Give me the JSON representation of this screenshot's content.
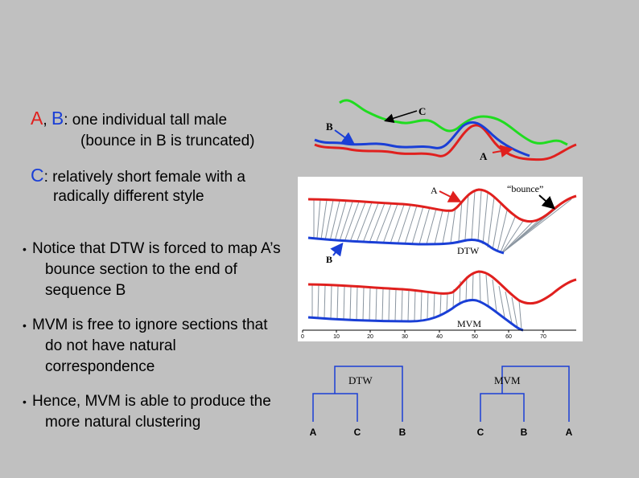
{
  "left_text": {
    "line1": {
      "a": "A",
      "comma": ",",
      "b": "B",
      "rest": ": one individual tall male"
    },
    "line2": "(bounce in B is truncated)",
    "line3": {
      "c": "C",
      "rest": ":  relatively short female with a"
    },
    "line4": "radically different style"
  },
  "bullets": [
    {
      "bullet": "•",
      "text": "Notice that DTW is forced to map A’s bounce section to the end of sequence B"
    },
    {
      "bullet": "•",
      "text": "MVM is free to ignore sections that do not have natural correspondence"
    },
    {
      "bullet": "•",
      "text": "Hence, MVM is able to produce the more natural clustering"
    }
  ],
  "top_plot": {
    "label_c": "C",
    "label_b": "B",
    "label_a": "A"
  },
  "mid_plot": {
    "label_a": "A",
    "label_bounce": "“bounce”",
    "label_b": "B",
    "label_dtw": "DTW",
    "label_mvm": "MVM",
    "x_ticks": [
      "0",
      "10",
      "20",
      "30",
      "40",
      "50",
      "60",
      "70"
    ]
  },
  "dendrograms": {
    "dtw": {
      "title": "DTW",
      "leaves": [
        "A",
        "C",
        "B"
      ]
    },
    "mvm": {
      "title": "MVM",
      "leaves": [
        "C",
        "B",
        "A"
      ]
    }
  },
  "colors": {
    "red": "#e0201e",
    "green": "#20dc20",
    "blue": "#1a3fd6"
  }
}
